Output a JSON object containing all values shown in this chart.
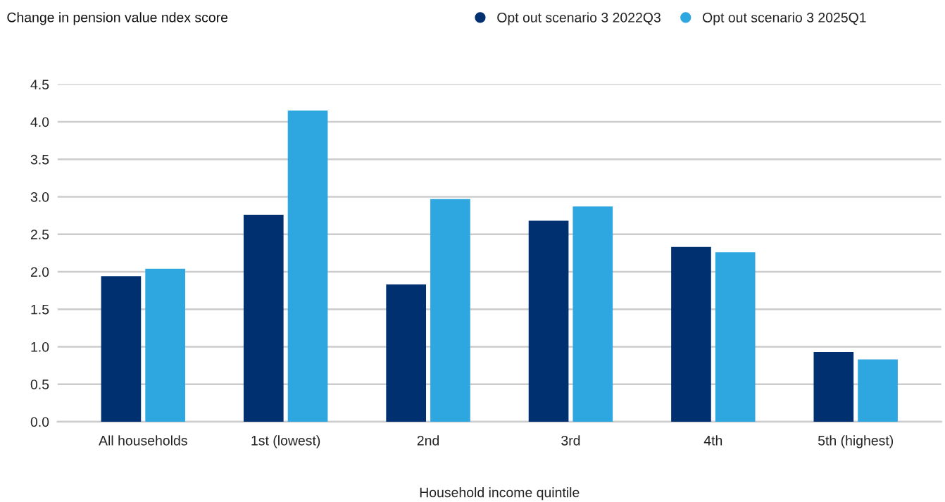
{
  "chart_data": {
    "type": "bar",
    "title": "Change in pension value ndex score",
    "xlabel": "Household income quintile",
    "categories": [
      "All households",
      "1st (lowest)",
      "2nd",
      "3rd",
      "4th",
      "5th (highest)"
    ],
    "series": [
      {
        "name": "Opt out scenario 3 2022Q3",
        "color": "#003070",
        "values": [
          1.94,
          2.76,
          1.83,
          2.68,
          2.33,
          0.93
        ]
      },
      {
        "name": "Opt out scenario 3 2025Q1",
        "color": "#2ea6df",
        "values": [
          2.04,
          4.15,
          2.97,
          2.87,
          2.26,
          0.83
        ]
      }
    ],
    "ylim": [
      0,
      4.5
    ],
    "yticks": [
      {
        "value": 0,
        "label": "0.0"
      },
      {
        "value": 0.5,
        "label": "0.5"
      },
      {
        "value": 1,
        "label": "1.0"
      },
      {
        "value": 1.5,
        "label": "1.5"
      },
      {
        "value": 2,
        "label": "2.0"
      },
      {
        "value": 2.5,
        "label": "2.5"
      },
      {
        "value": 3,
        "label": "3.0"
      },
      {
        "value": 3.5,
        "label": "3.5"
      },
      {
        "value": 4,
        "label": "4.0"
      },
      {
        "value": 4.5,
        "label": "4.5"
      }
    ],
    "grid": "y",
    "legend": "top right",
    "marker": "circle"
  }
}
